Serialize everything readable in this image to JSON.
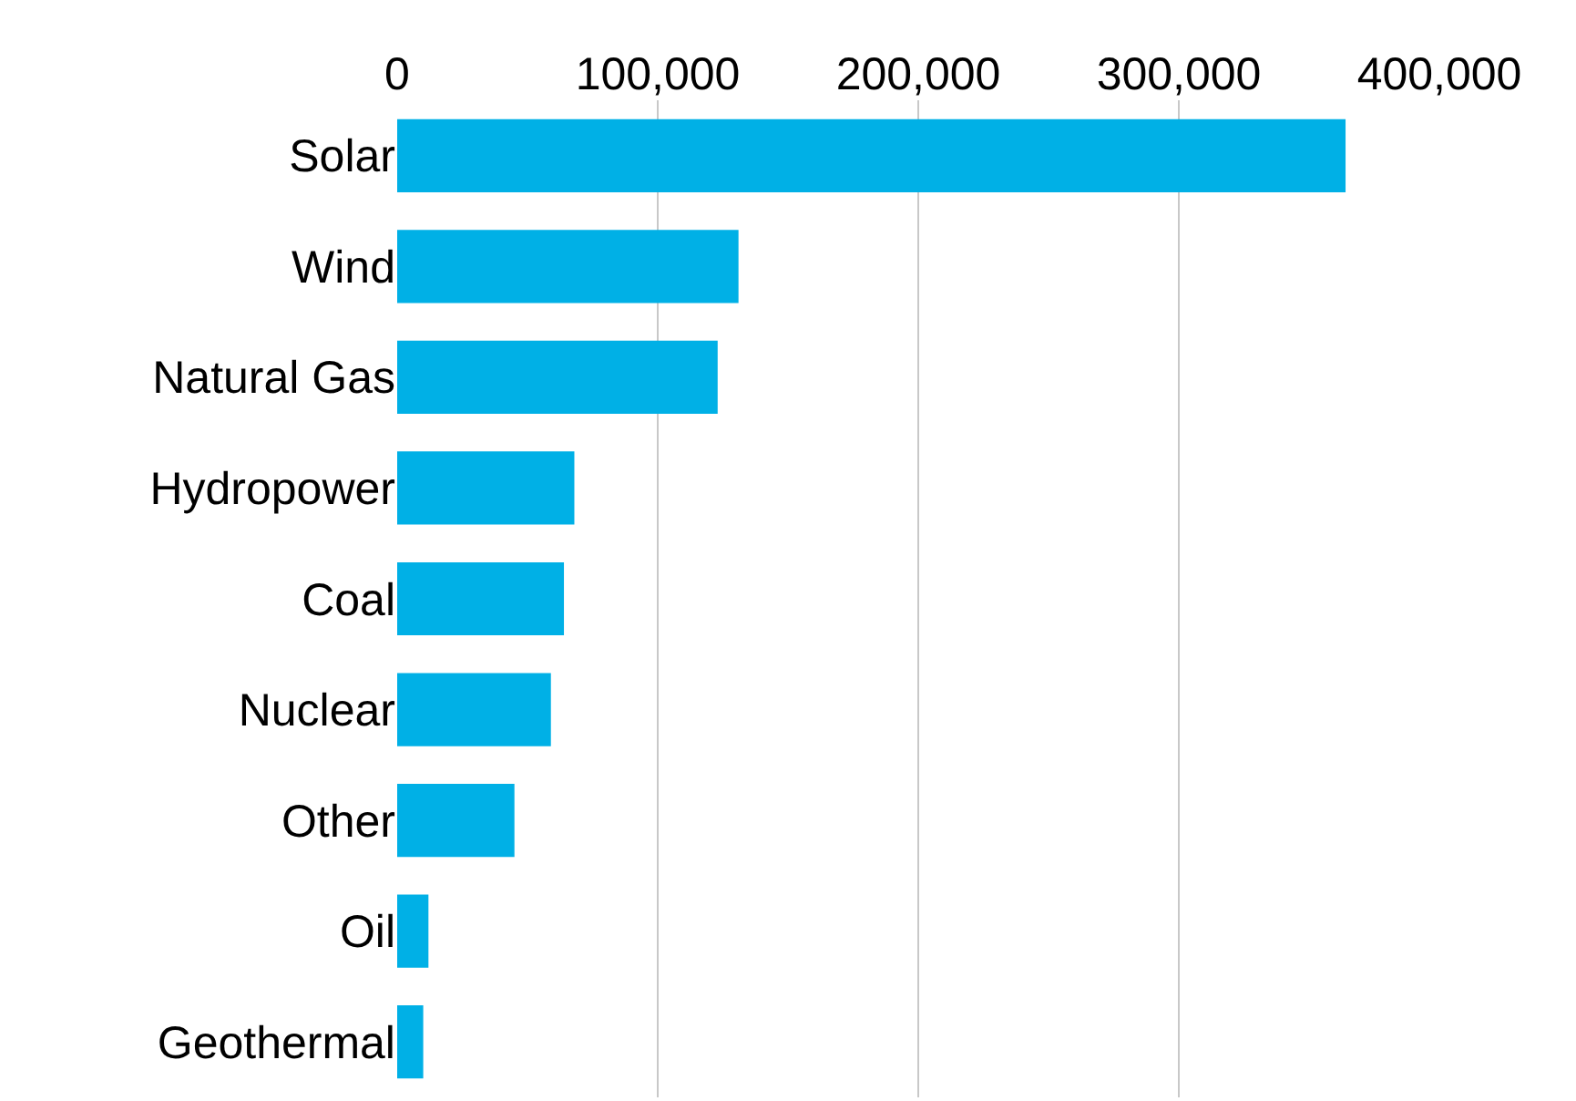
{
  "chart_data": {
    "type": "bar",
    "orientation": "horizontal",
    "categories": [
      "Solar",
      "Wind",
      "Natural Gas",
      "Hydropower",
      "Coal",
      "Nuclear",
      "Other",
      "Oil",
      "Geothermal"
    ],
    "values": [
      364000,
      131000,
      123000,
      68000,
      64000,
      59000,
      45000,
      12000,
      10000
    ],
    "color": "#00b0e6",
    "xlim": [
      0,
      400000
    ],
    "xticks": [
      {
        "value": 0,
        "label": "0"
      },
      {
        "value": 100000,
        "label": "100,000"
      },
      {
        "value": 200000,
        "label": "200,000"
      },
      {
        "value": 300000,
        "label": "300,000"
      },
      {
        "value": 400000,
        "label": "400,000"
      }
    ],
    "grid": "x",
    "legend": false
  }
}
